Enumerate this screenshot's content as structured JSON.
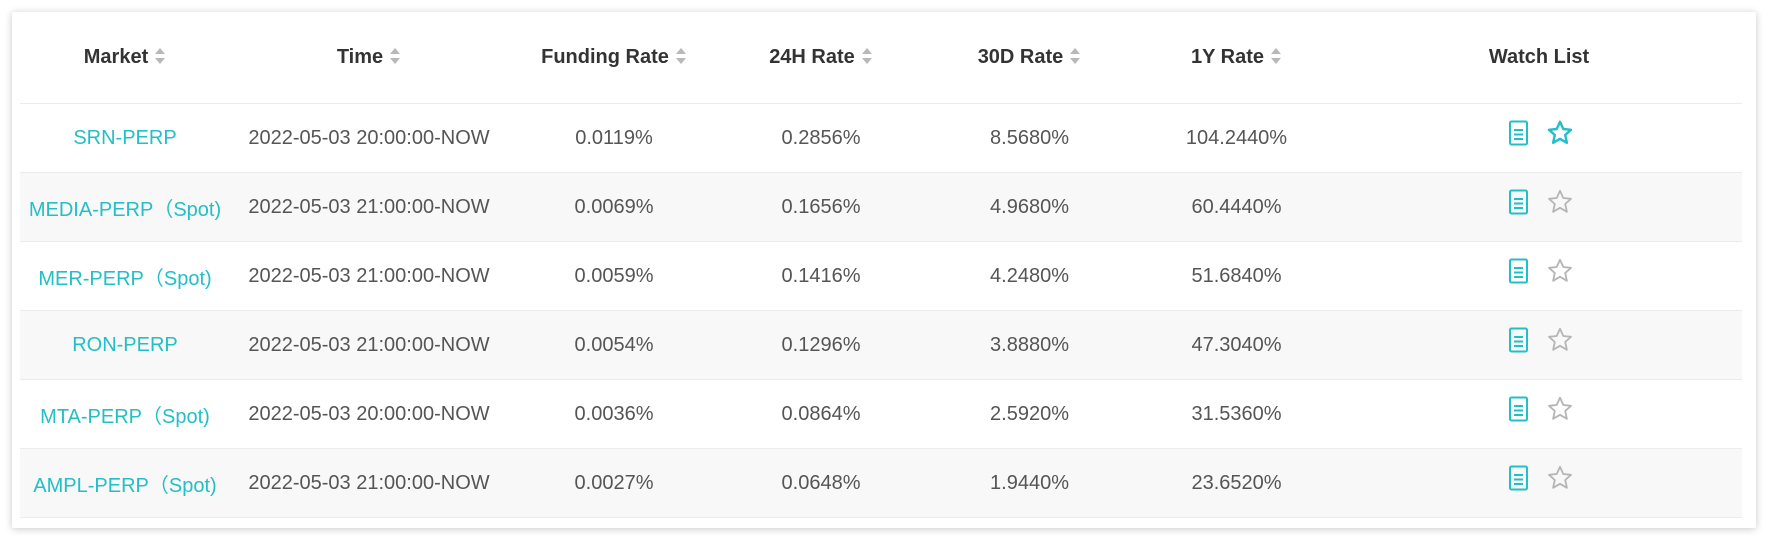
{
  "table": {
    "headers": [
      {
        "label": "Market",
        "sortable": true
      },
      {
        "label": "Time",
        "sortable": true
      },
      {
        "label": "Funding Rate",
        "sortable": true
      },
      {
        "label": "24H Rate",
        "sortable": true
      },
      {
        "label": "30D Rate",
        "sortable": true
      },
      {
        "label": "1Y Rate",
        "sortable": true
      },
      {
        "label": "Watch List",
        "sortable": false
      }
    ],
    "rows": [
      {
        "market": "SRN-PERP",
        "time": "2022-05-03 20:00:00-NOW",
        "funding_rate": "0.0119%",
        "rate_24h": "0.2856%",
        "rate_30d": "8.5680%",
        "rate_1y": "104.2440%",
        "watched": true
      },
      {
        "market": "MEDIA-PERP（Spot)",
        "time": "2022-05-03 21:00:00-NOW",
        "funding_rate": "0.0069%",
        "rate_24h": "0.1656%",
        "rate_30d": "4.9680%",
        "rate_1y": "60.4440%",
        "watched": false
      },
      {
        "market": "MER-PERP（Spot)",
        "time": "2022-05-03 21:00:00-NOW",
        "funding_rate": "0.0059%",
        "rate_24h": "0.1416%",
        "rate_30d": "4.2480%",
        "rate_1y": "51.6840%",
        "watched": false
      },
      {
        "market": "RON-PERP",
        "time": "2022-05-03 21:00:00-NOW",
        "funding_rate": "0.0054%",
        "rate_24h": "0.1296%",
        "rate_30d": "3.8880%",
        "rate_1y": "47.3040%",
        "watched": false
      },
      {
        "market": "MTA-PERP（Spot)",
        "time": "2022-05-03 20:00:00-NOW",
        "funding_rate": "0.0036%",
        "rate_24h": "0.0864%",
        "rate_30d": "2.5920%",
        "rate_1y": "31.5360%",
        "watched": false
      },
      {
        "market": "AMPL-PERP（Spot)",
        "time": "2022-05-03 21:00:00-NOW",
        "funding_rate": "0.0027%",
        "rate_24h": "0.0648%",
        "rate_30d": "1.9440%",
        "rate_1y": "23.6520%",
        "watched": false
      }
    ]
  },
  "icons": {
    "detail": "document-icon",
    "watch": "star-icon",
    "sort": "sort-icon"
  },
  "colors": {
    "accent": "#22bfc6",
    "text": "#555555",
    "header_text": "#333333",
    "star_inactive": "#b5b5b5",
    "row_alt_bg": "#f8f8f8"
  }
}
